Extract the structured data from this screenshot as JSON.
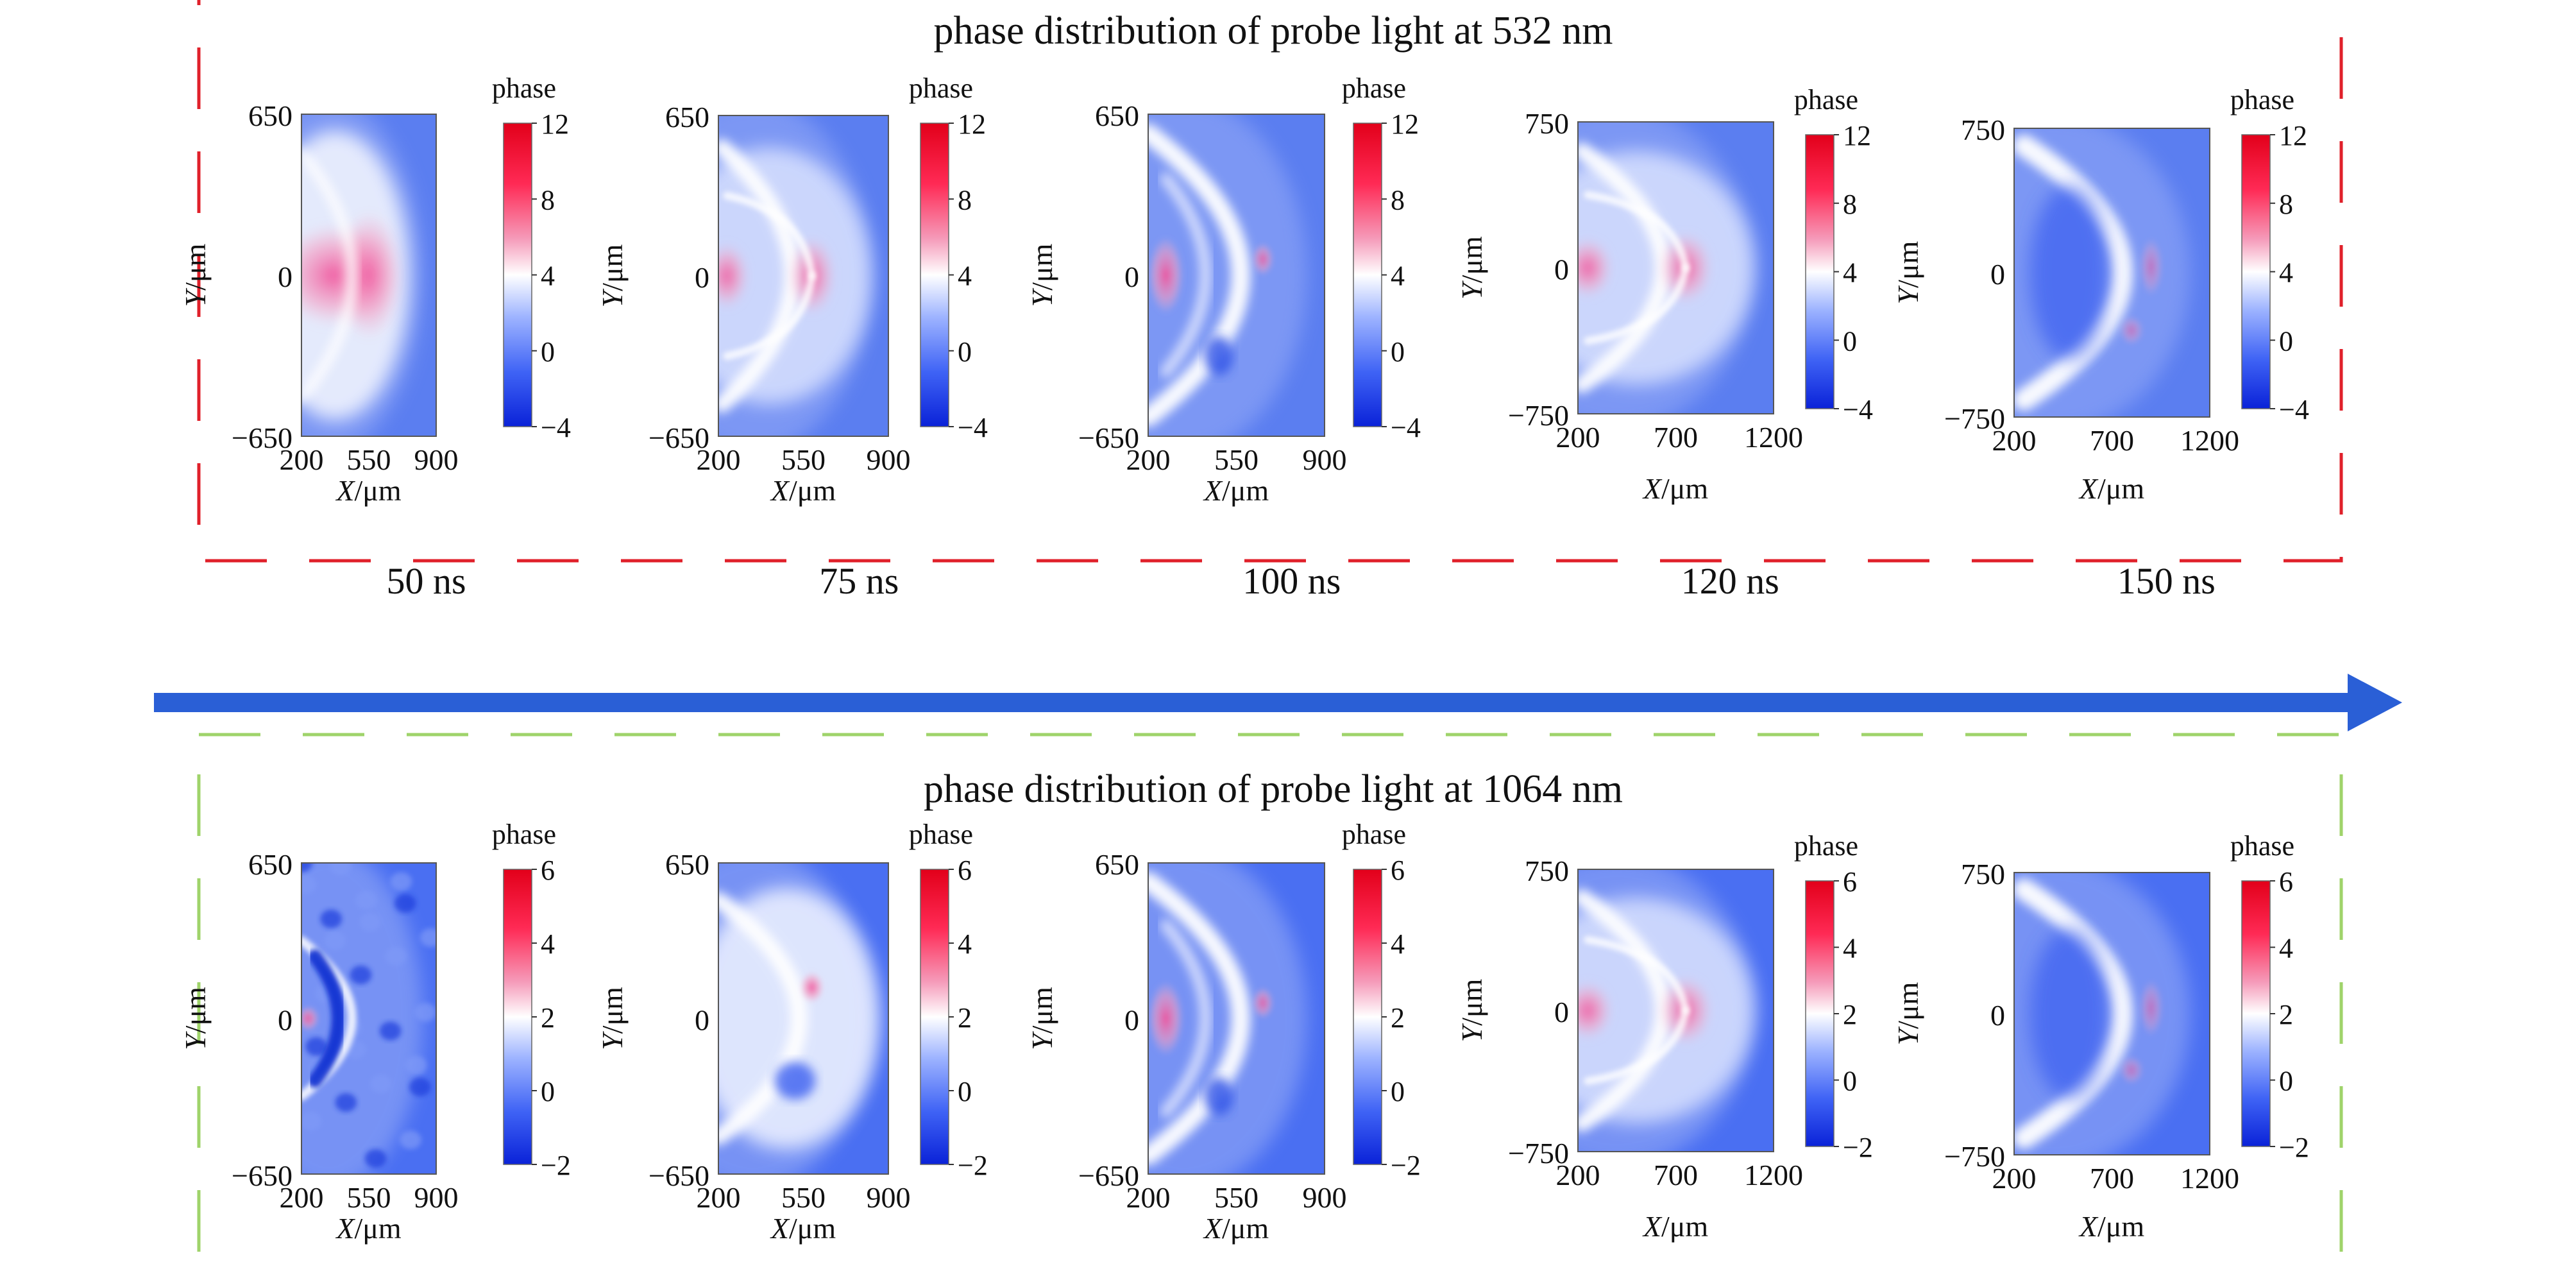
{
  "figure": {
    "time_labels": [
      "50 ns",
      "75 ns",
      "100 ns",
      "120 ns",
      "150 ns"
    ],
    "arrow_color": "#2a5fd6",
    "rows": [
      {
        "title": "phase distribution of probe light at 532 nm",
        "border_color": "#e0202a",
        "colorbar": {
          "label": "phase",
          "ticks": [
            "12",
            "8",
            "4",
            "0",
            "−4"
          ]
        },
        "panels": [
          {
            "time": "50 ns",
            "y_ticks": [
              "650",
              "0",
              "−650"
            ],
            "x_ticks": [
              "200",
              "550",
              "900"
            ],
            "pattern": "cap-strong"
          },
          {
            "time": "75 ns",
            "y_ticks": [
              "650",
              "0",
              "−650"
            ],
            "x_ticks": [
              "200",
              "550",
              "900"
            ],
            "pattern": "cap-rim"
          },
          {
            "time": "100 ns",
            "y_ticks": [
              "650",
              "0",
              "−650"
            ],
            "x_ticks": [
              "200",
              "550",
              "900"
            ],
            "pattern": "ring-left"
          },
          {
            "time": "120 ns",
            "y_ticks": [
              "750",
              "0",
              "−750"
            ],
            "x_ticks": [
              "200",
              "700",
              "1200"
            ],
            "pattern": "cap-rim"
          },
          {
            "time": "150 ns",
            "y_ticks": [
              "750",
              "0",
              "−750"
            ],
            "x_ticks": [
              "200",
              "700",
              "1200"
            ],
            "pattern": "crescent"
          }
        ]
      },
      {
        "title": "phase distribution of probe light at 1064 nm",
        "border_color": "#9fd36a",
        "colorbar": {
          "label": "phase",
          "ticks": [
            "6",
            "4",
            "2",
            "0",
            "−2"
          ]
        },
        "panels": [
          {
            "time": "50 ns",
            "y_ticks": [
              "650",
              "0",
              "−650"
            ],
            "x_ticks": [
              "200",
              "550",
              "900"
            ],
            "pattern": "noisy"
          },
          {
            "time": "75 ns",
            "y_ticks": [
              "650",
              "0",
              "−650"
            ],
            "x_ticks": [
              "200",
              "550",
              "900"
            ],
            "pattern": "ring-soft"
          },
          {
            "time": "100 ns",
            "y_ticks": [
              "650",
              "0",
              "−650"
            ],
            "x_ticks": [
              "200",
              "550",
              "900"
            ],
            "pattern": "ring-left"
          },
          {
            "time": "120 ns",
            "y_ticks": [
              "750",
              "0",
              "−750"
            ],
            "x_ticks": [
              "200",
              "700",
              "1200"
            ],
            "pattern": "cap-rim"
          },
          {
            "time": "150 ns",
            "y_ticks": [
              "750",
              "0",
              "−750"
            ],
            "x_ticks": [
              "200",
              "700",
              "1200"
            ],
            "pattern": "crescent"
          }
        ]
      }
    ],
    "axis_labels": {
      "y_var": "Y",
      "y_unit": "/μm",
      "x_var": "X",
      "x_unit": "/μm"
    }
  }
}
